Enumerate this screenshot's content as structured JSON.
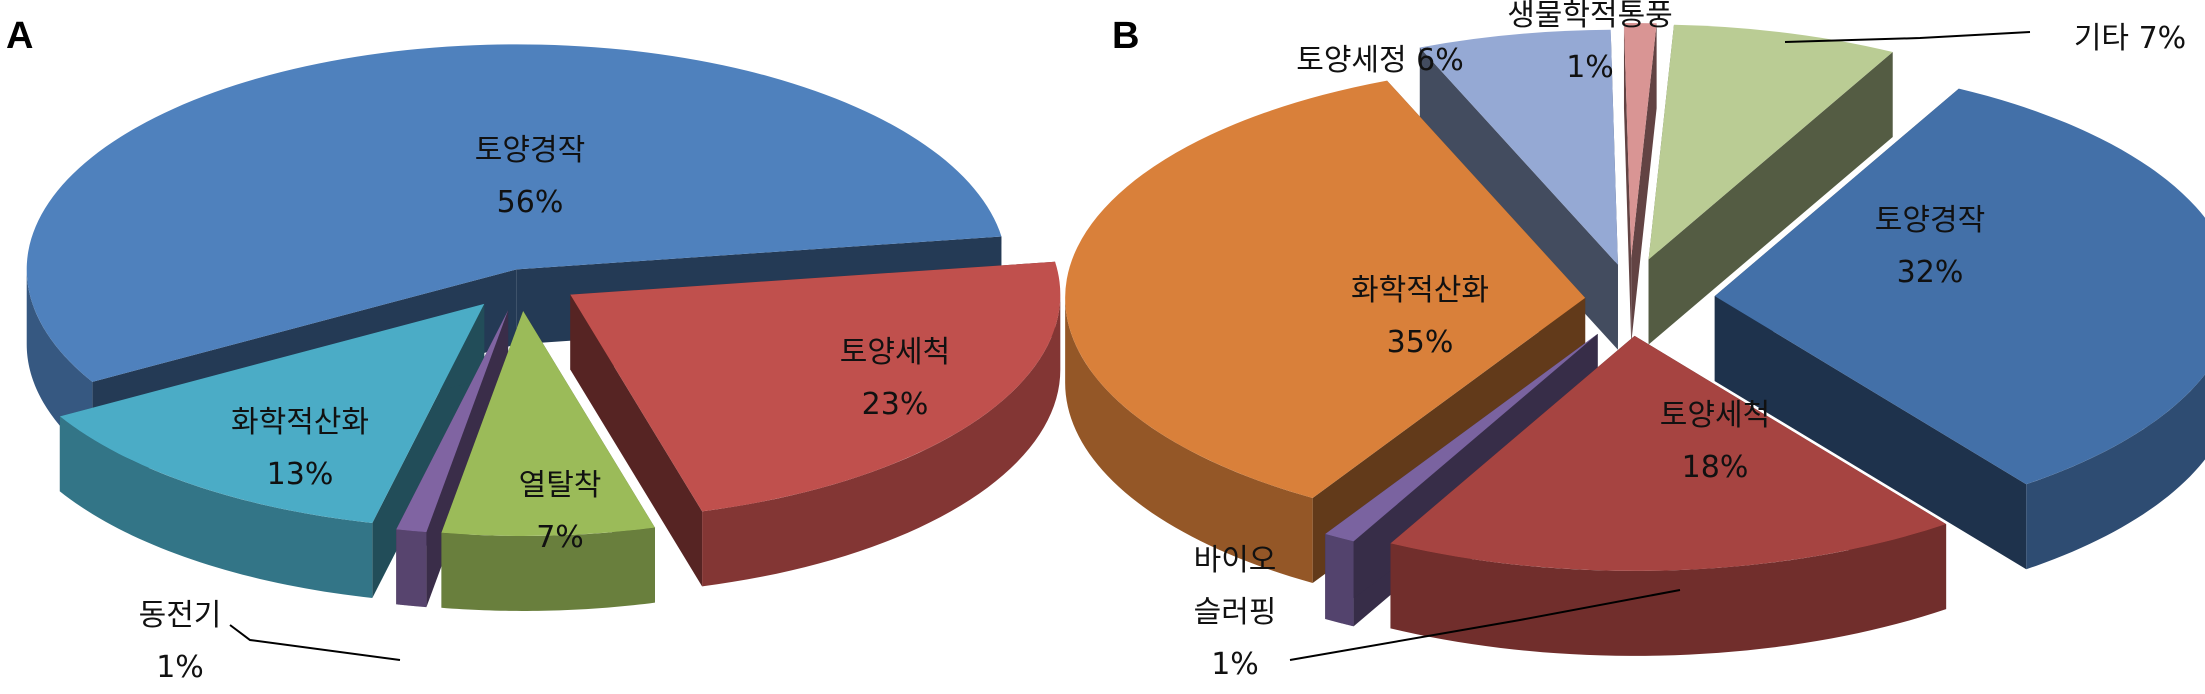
{
  "chart_data": [
    {
      "type": "pie",
      "panel_label": "A",
      "three_d": true,
      "exploded": true,
      "categories": [
        "토양경작",
        "토양세척",
        "열탈착",
        "동전기",
        "화학적산화"
      ],
      "values": [
        56,
        23,
        7,
        1,
        13
      ],
      "value_labels": [
        "56%",
        "23%",
        "7%",
        "1%",
        "13%"
      ],
      "colors": [
        "#4F81BD",
        "#C0504D",
        "#9BBB59",
        "#8064A2",
        "#4BACC6"
      ]
    },
    {
      "type": "pie",
      "panel_label": "B",
      "three_d": true,
      "exploded": true,
      "categories": [
        "토양경작",
        "토양세척",
        "바이오 슬러핑",
        "화학적산화",
        "토양세정",
        "생물학적통풍",
        "기타"
      ],
      "category_lines": [
        [
          "토양경작"
        ],
        [
          "토양세척"
        ],
        [
          "바이오",
          "슬러핑"
        ],
        [
          "화학적산화"
        ],
        [
          "토양세정"
        ],
        [
          "생물학적통풍"
        ],
        [
          "기타"
        ]
      ],
      "values": [
        32,
        18,
        1,
        35,
        6,
        1,
        7
      ],
      "value_labels": [
        "32%",
        "18%",
        "1%",
        "35%",
        "6%",
        "1%",
        "7%"
      ],
      "colors": [
        "#4370A8",
        "#A64441",
        "#7A63A0",
        "#D9803A",
        "#95A9D4",
        "#D99594",
        "#BACC94"
      ]
    }
  ]
}
